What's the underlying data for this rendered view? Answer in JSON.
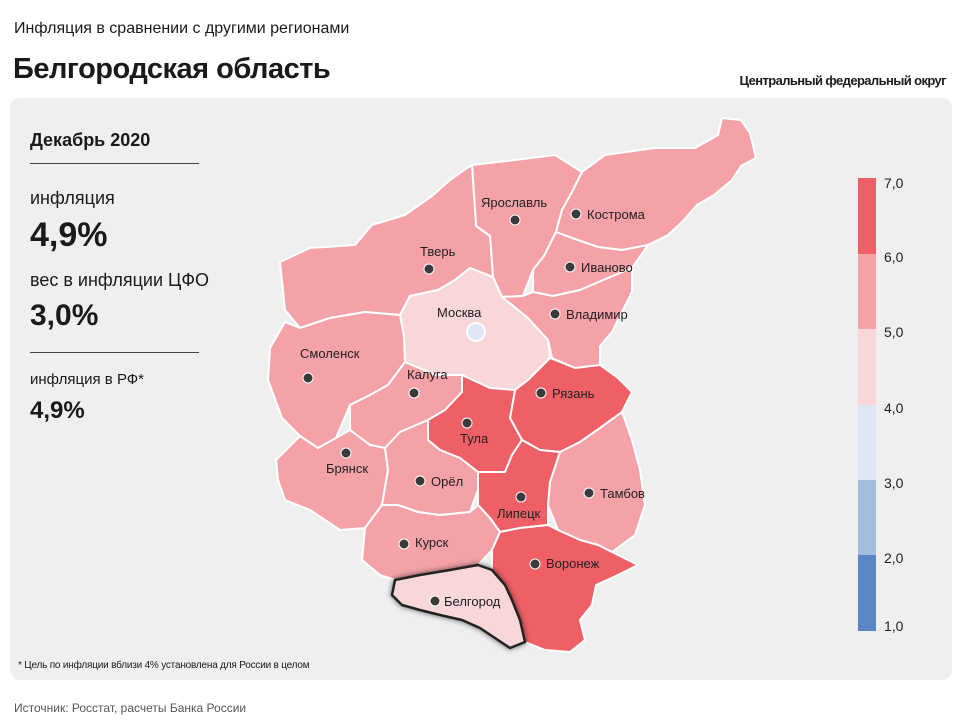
{
  "header": {
    "subtitle": "Инфляция в сравнении с другими регионами",
    "title": "Белгородская область",
    "district": "Центральный федеральный округ"
  },
  "stats": {
    "period": "Декабрь 2020",
    "inflation_label": "инфляция",
    "inflation_value": "4,9%",
    "weight_label": "вес в инфляции ЦФО",
    "weight_value": "3,0%",
    "rf_label": "инфляция в РФ*",
    "rf_value": "4,9%"
  },
  "footnote": "* Цель по инфляции вблизи 4% установлена для России в целом",
  "source": "Источник: Росстат, расчеты Банка России",
  "colors": {
    "bin_1_2": "#5b87c6",
    "bin_2_3": "#a3bde0",
    "bin_3_4": "#dfe7f6",
    "bin_4_5": "#f8d6d9",
    "bin_5_6": "#f4a2a7",
    "bin_6_7": "#ef6066",
    "highlight_outline": "#222222"
  },
  "legend": {
    "ticks": [
      "7,0",
      "6,0",
      "5,0",
      "4,0",
      "3,0",
      "2,0",
      "1,0"
    ]
  },
  "regions": [
    {
      "id": "yaroslavl",
      "name": "Ярославль",
      "bin": "5-6"
    },
    {
      "id": "kostroma",
      "name": "Кострома",
      "bin": "5-6"
    },
    {
      "id": "tver",
      "name": "Тверь",
      "bin": "5-6"
    },
    {
      "id": "ivanovo",
      "name": "Иваново",
      "bin": "5-6"
    },
    {
      "id": "moscow",
      "name": "Москва",
      "bin": "4-5"
    },
    {
      "id": "vladimir",
      "name": "Владимир",
      "bin": "5-6"
    },
    {
      "id": "smolensk",
      "name": "Смоленск",
      "bin": "5-6"
    },
    {
      "id": "kaluga",
      "name": "Калуга",
      "bin": "5-6"
    },
    {
      "id": "ryazan",
      "name": "Рязань",
      "bin": "6-7"
    },
    {
      "id": "tula",
      "name": "Тула",
      "bin": "6-7"
    },
    {
      "id": "bryansk",
      "name": "Брянск",
      "bin": "5-6"
    },
    {
      "id": "orel",
      "name": "Орёл",
      "bin": "5-6"
    },
    {
      "id": "tambov",
      "name": "Тамбов",
      "bin": "5-6"
    },
    {
      "id": "lipetsk",
      "name": "Липецк",
      "bin": "6-7"
    },
    {
      "id": "kursk",
      "name": "Курск",
      "bin": "5-6"
    },
    {
      "id": "voronezh",
      "name": "Воронеж",
      "bin": "6-7"
    },
    {
      "id": "belgorod",
      "name": "Белгород",
      "bin": "4-5",
      "highlighted": true
    }
  ]
}
